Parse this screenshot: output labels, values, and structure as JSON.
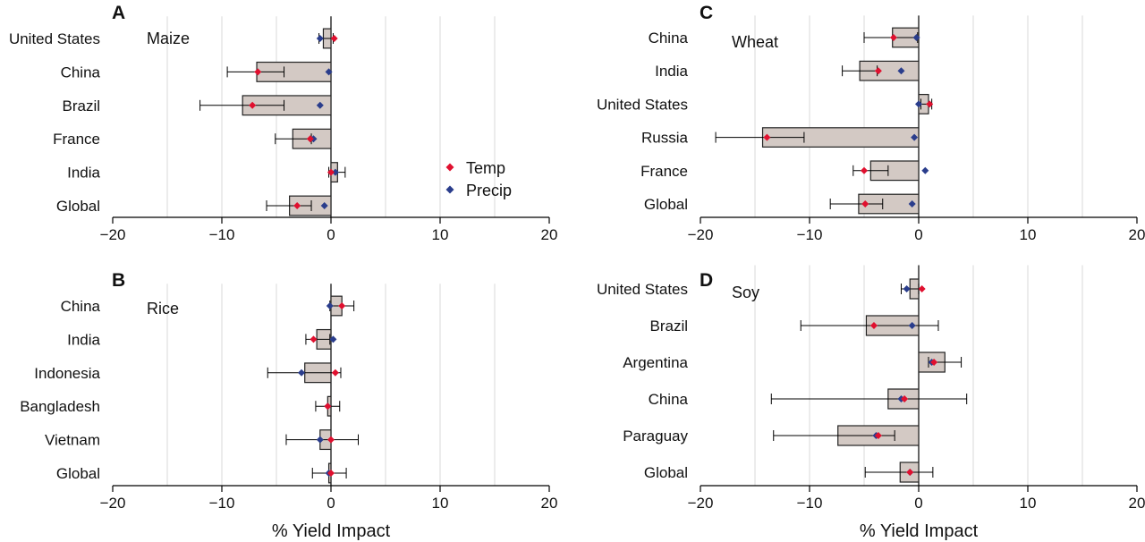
{
  "colors": {
    "temp": "#e0102f",
    "precip": "#2a3d8c",
    "bar_fill": "#d3c9c4",
    "bar_stroke": "#222222",
    "grid": "#d9d9d9"
  },
  "x_axis_label": "% Yield Impact",
  "legend": {
    "temp": "Temp",
    "precip": "Precip"
  },
  "chart_data": [
    {
      "type": "bar",
      "panel_label": "A",
      "crop": "Maize",
      "xlim": [
        -20,
        20
      ],
      "xticks": [
        -20,
        -10,
        0,
        10,
        20
      ],
      "xtick_labels": [
        "−20",
        "−10",
        "0",
        "10",
        "20"
      ],
      "grid": true,
      "legend_position": "right-center",
      "categories": [
        "United States",
        "China",
        "Brazil",
        "France",
        "India",
        "Global"
      ],
      "values": [
        -0.7,
        -6.8,
        -8.1,
        -3.5,
        0.6,
        -3.8
      ],
      "error_low": [
        -1.1,
        -9.5,
        -12.0,
        -5.1,
        -0.2,
        -5.9
      ],
      "error_high": [
        0.2,
        -4.3,
        -4.3,
        -1.8,
        1.3,
        -1.8
      ],
      "temp": [
        0.3,
        -6.7,
        -7.2,
        -1.9,
        0.0,
        -3.1
      ],
      "precip": [
        -1.0,
        -0.2,
        -1.0,
        -1.6,
        0.4,
        -0.6
      ]
    },
    {
      "type": "bar",
      "panel_label": "B",
      "crop": "Rice",
      "xlim": [
        -20,
        20
      ],
      "xticks": [
        -20,
        -10,
        0,
        10,
        20
      ],
      "xtick_labels": [
        "−20",
        "−10",
        "0",
        "10",
        "20"
      ],
      "grid": true,
      "categories": [
        "China",
        "India",
        "Indonesia",
        "Bangladesh",
        "Vietnam",
        "Global"
      ],
      "values": [
        1.0,
        -1.3,
        -2.4,
        -0.3,
        -1.0,
        -0.2
      ],
      "error_low": [
        -0.1,
        -2.3,
        -5.8,
        -1.4,
        -4.1,
        -1.7
      ],
      "error_high": [
        2.1,
        -0.1,
        0.9,
        0.8,
        2.5,
        1.4
      ],
      "temp": [
        1.0,
        -1.6,
        0.4,
        -0.3,
        0.0,
        0.0
      ],
      "precip": [
        -0.1,
        0.2,
        -2.7,
        -0.3,
        -1.0,
        -0.2
      ]
    },
    {
      "type": "bar",
      "panel_label": "C",
      "crop": "Wheat",
      "xlim": [
        -20,
        20
      ],
      "xticks": [
        -20,
        -10,
        0,
        10,
        20
      ],
      "xtick_labels": [
        "−20",
        "−10",
        "0",
        "10",
        "20"
      ],
      "grid": true,
      "categories": [
        "China",
        "India",
        "United States",
        "Russia",
        "France",
        "Global"
      ],
      "values": [
        -2.4,
        -5.4,
        0.9,
        -14.3,
        -4.4,
        -5.5
      ],
      "error_low": [
        -5.0,
        -7.0,
        0.2,
        -18.6,
        -6.0,
        -8.1
      ],
      "error_high": [
        -0.1,
        -3.8,
        1.2,
        -10.5,
        -2.8,
        -3.3
      ],
      "temp": [
        -2.3,
        -3.7,
        1.0,
        -13.9,
        -5.0,
        -4.9
      ],
      "precip": [
        -0.2,
        -1.6,
        0.0,
        -0.4,
        0.6,
        -0.6
      ]
    },
    {
      "type": "bar",
      "panel_label": "D",
      "crop": "Soy",
      "xlim": [
        -20,
        20
      ],
      "xticks": [
        -20,
        -10,
        0,
        10,
        20
      ],
      "xtick_labels": [
        "−20",
        "−10",
        "0",
        "10",
        "20"
      ],
      "grid": true,
      "categories": [
        "United States",
        "Brazil",
        "Argentina",
        "China",
        "Paraguay",
        "Global"
      ],
      "values": [
        -0.8,
        -4.8,
        2.4,
        -2.8,
        -7.4,
        -1.7
      ],
      "error_low": [
        -1.6,
        -10.8,
        0.9,
        -13.5,
        -13.3,
        -4.9
      ],
      "error_high": [
        0.0,
        1.8,
        3.9,
        4.4,
        -2.2,
        1.3
      ],
      "temp": [
        0.3,
        -4.1,
        1.4,
        -1.3,
        -3.7,
        -0.8
      ],
      "precip": [
        -1.1,
        -0.6,
        1.2,
        -1.6,
        -3.9,
        -0.8
      ]
    }
  ]
}
